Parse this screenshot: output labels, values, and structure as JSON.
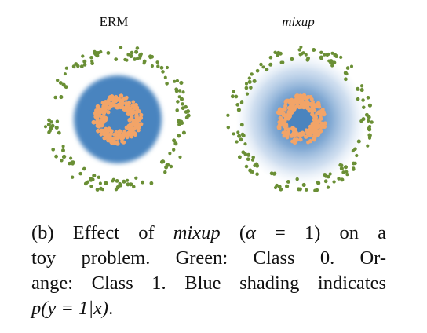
{
  "figure": {
    "panels": [
      {
        "title": "ERM"
      },
      {
        "title": "mixup"
      }
    ],
    "colors": {
      "class0_green": "#6a8f35",
      "class1_orange": "#f2a468",
      "prob_blue": "#4a84bf",
      "background": "#ffffff"
    }
  },
  "caption": {
    "line1": {
      "prefix": "(b) Effect of",
      "method": "mixup",
      "paren_open": "(",
      "alpha": "α",
      "equals": "=",
      "value": "1)",
      "suffix": "on a"
    },
    "line2": "toy problem.   Green: Class 0.   Or-",
    "line3": "ange: Class 1. Blue shading indicates",
    "line4": {
      "math": "p(y = 1|x)",
      "period": "."
    }
  }
}
